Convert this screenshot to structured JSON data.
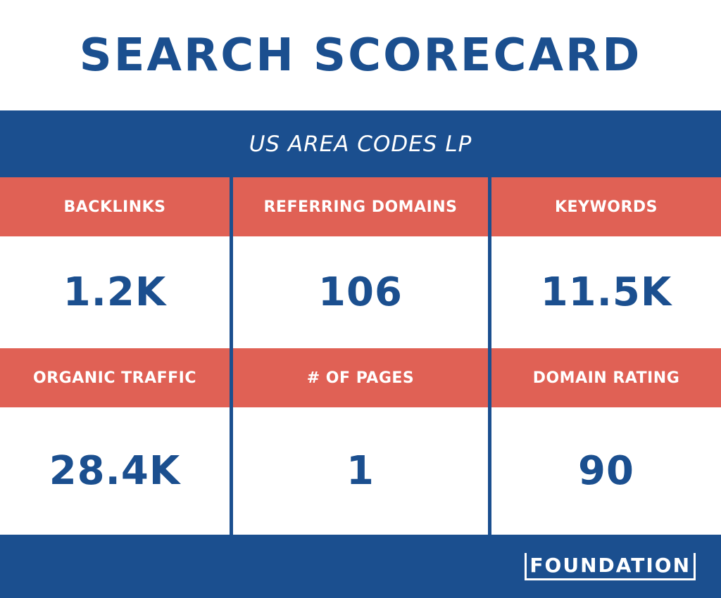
{
  "header": {
    "title": "SEARCH SCORECARD",
    "subtitle": "US AREA CODES LP"
  },
  "metrics": [
    {
      "label": "BACKLINKS",
      "value": "1.2K"
    },
    {
      "label": "REFERRING DOMAINS",
      "value": "106"
    },
    {
      "label": "KEYWORDS",
      "value": "11.5K"
    },
    {
      "label": "ORGANIC TRAFFIC",
      "value": "28.4K"
    },
    {
      "label": "# OF PAGES",
      "value": "1"
    },
    {
      "label": "DOMAIN RATING",
      "value": "90"
    }
  ],
  "footer": {
    "logo_text": "FOUNDATION"
  },
  "colors": {
    "brand_blue": "#1b4f8f",
    "accent_red": "#e06155",
    "background": "#ffffff"
  }
}
